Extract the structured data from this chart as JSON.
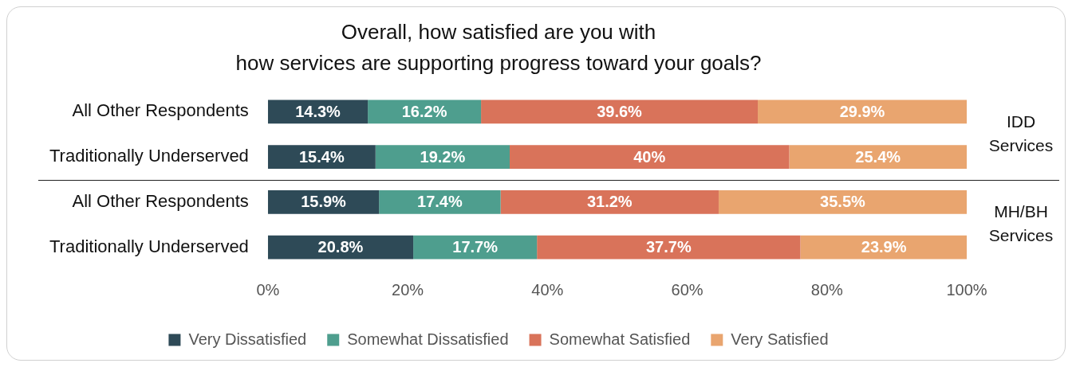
{
  "chart_data": {
    "type": "bar",
    "orientation": "horizontal",
    "stacked": true,
    "title": "Overall, how satisfied are you with\nhow services are supporting progress toward your goals?",
    "categories": [
      "All Other Respondents",
      "Traditionally Underserved",
      "All Other Respondents",
      "Traditionally Underserved"
    ],
    "series": [
      {
        "name": "Very Dissatisfied",
        "color": "#2e4a57",
        "values": [
          14.3,
          15.4,
          15.9,
          20.8
        ],
        "value_labels": [
          "14.3%",
          "15.4%",
          "15.9%",
          "20.8%"
        ]
      },
      {
        "name": "Somewhat Dissatisfied",
        "color": "#4e9e8e",
        "values": [
          16.2,
          19.2,
          17.4,
          17.7
        ],
        "value_labels": [
          "16.2%",
          "19.2%",
          "17.4%",
          "17.7%"
        ]
      },
      {
        "name": "Somewhat Satisfied",
        "color": "#d9735a",
        "values": [
          39.6,
          40,
          31.2,
          37.7
        ],
        "value_labels": [
          "39.6%",
          "40%",
          "31.2%",
          "37.7%"
        ]
      },
      {
        "name": "Very Satisfied",
        "color": "#e9a56f",
        "values": [
          29.9,
          25.4,
          35.5,
          23.9
        ],
        "value_labels": [
          "29.9%",
          "25.4%",
          "35.5%",
          "23.9%"
        ]
      }
    ],
    "xlim": [
      0,
      100
    ],
    "xticks": [
      {
        "value": 0,
        "label": "0%"
      },
      {
        "value": 20,
        "label": "20%"
      },
      {
        "value": 40,
        "label": "40%"
      },
      {
        "value": 60,
        "label": "60%"
      },
      {
        "value": 80,
        "label": "80%"
      },
      {
        "value": 100,
        "label": "100%"
      }
    ],
    "annotations": [
      "IDD\nServices",
      "MH/BH\nServices"
    ],
    "grid": false,
    "legend": "bottom"
  }
}
